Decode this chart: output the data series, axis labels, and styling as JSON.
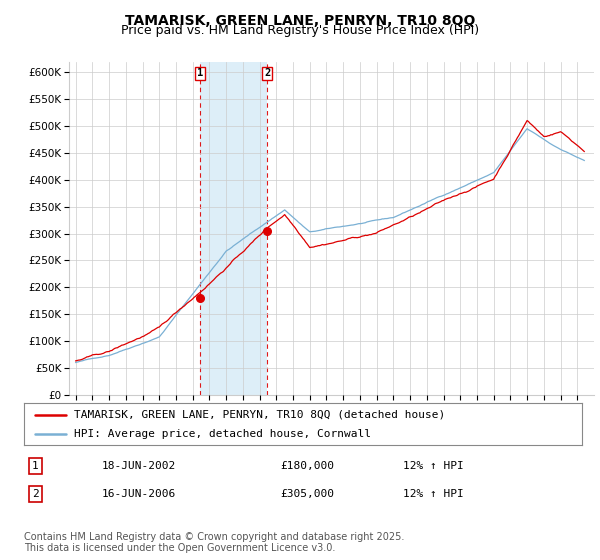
{
  "title": "TAMARISK, GREEN LANE, PENRYN, TR10 8QQ",
  "subtitle": "Price paid vs. HM Land Registry's House Price Index (HPI)",
  "ylim": [
    0,
    620000
  ],
  "yticks": [
    0,
    50000,
    100000,
    150000,
    200000,
    250000,
    300000,
    350000,
    400000,
    450000,
    500000,
    550000,
    600000
  ],
  "sale1_year": 2002.46,
  "sale1_price": 180000,
  "sale2_year": 2006.46,
  "sale2_price": 305000,
  "line_color_red": "#dd0000",
  "line_color_blue": "#7ab0d4",
  "shade_color": "#ddeef8",
  "grid_color": "#cccccc",
  "legend_label_red": "TAMARISK, GREEN LANE, PENRYN, TR10 8QQ (detached house)",
  "legend_label_blue": "HPI: Average price, detached house, Cornwall",
  "table_row1": [
    "1",
    "18-JUN-2002",
    "£180,000",
    "12% ↑ HPI"
  ],
  "table_row2": [
    "2",
    "16-JUN-2006",
    "£305,000",
    "12% ↑ HPI"
  ],
  "footnote": "Contains HM Land Registry data © Crown copyright and database right 2025.\nThis data is licensed under the Open Government Licence v3.0.",
  "title_fontsize": 10,
  "subtitle_fontsize": 9,
  "tick_fontsize": 7.5,
  "legend_fontsize": 8,
  "table_fontsize": 8,
  "footnote_fontsize": 7
}
